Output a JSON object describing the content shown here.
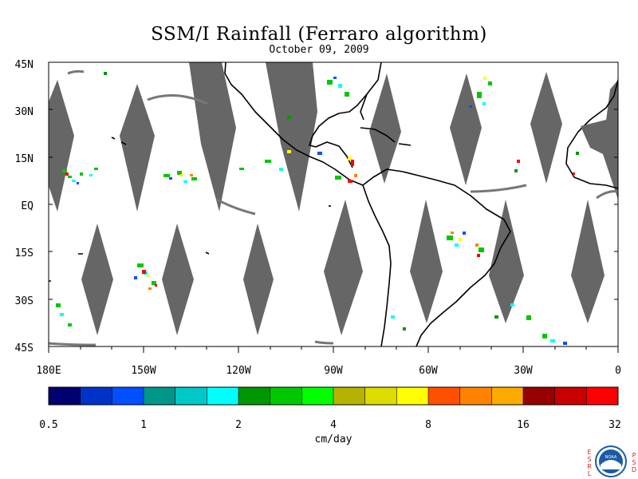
{
  "title": "SSM/I Rainfall (Ferraro algorithm)",
  "date": "October 09, 2009",
  "map": {
    "lat_labels": [
      "45N",
      "30N",
      "15N",
      "EQ",
      "15S",
      "30S",
      "45S"
    ],
    "lon_labels": [
      "180E",
      "150W",
      "120W",
      "90W",
      "60W",
      "30W",
      "0"
    ],
    "lon_range": [
      -180,
      0
    ],
    "lat_range": [
      -45,
      45
    ],
    "no_data_color": "#666666"
  },
  "colorbar": {
    "unit_label": "cm/day",
    "tick_labels": [
      "0.5",
      "1",
      "2",
      "4",
      "8",
      "16",
      "32"
    ],
    "colors": [
      "#00006e",
      "#0032c8",
      "#0050ff",
      "#00968c",
      "#00c8c8",
      "#00ffff",
      "#009600",
      "#00c800",
      "#00ff00",
      "#b4b400",
      "#dcdc00",
      "#ffff00",
      "#ff5000",
      "#ff8200",
      "#ffaa00",
      "#960000",
      "#c80000",
      "#ff0000"
    ]
  },
  "logo": {
    "text": "NOAA",
    "left_letters": [
      "E",
      "S",
      "R",
      "L"
    ],
    "right_letters": [
      "P",
      "S",
      "D"
    ],
    "accent": "#e02020",
    "blue": "#1a5aa8"
  }
}
